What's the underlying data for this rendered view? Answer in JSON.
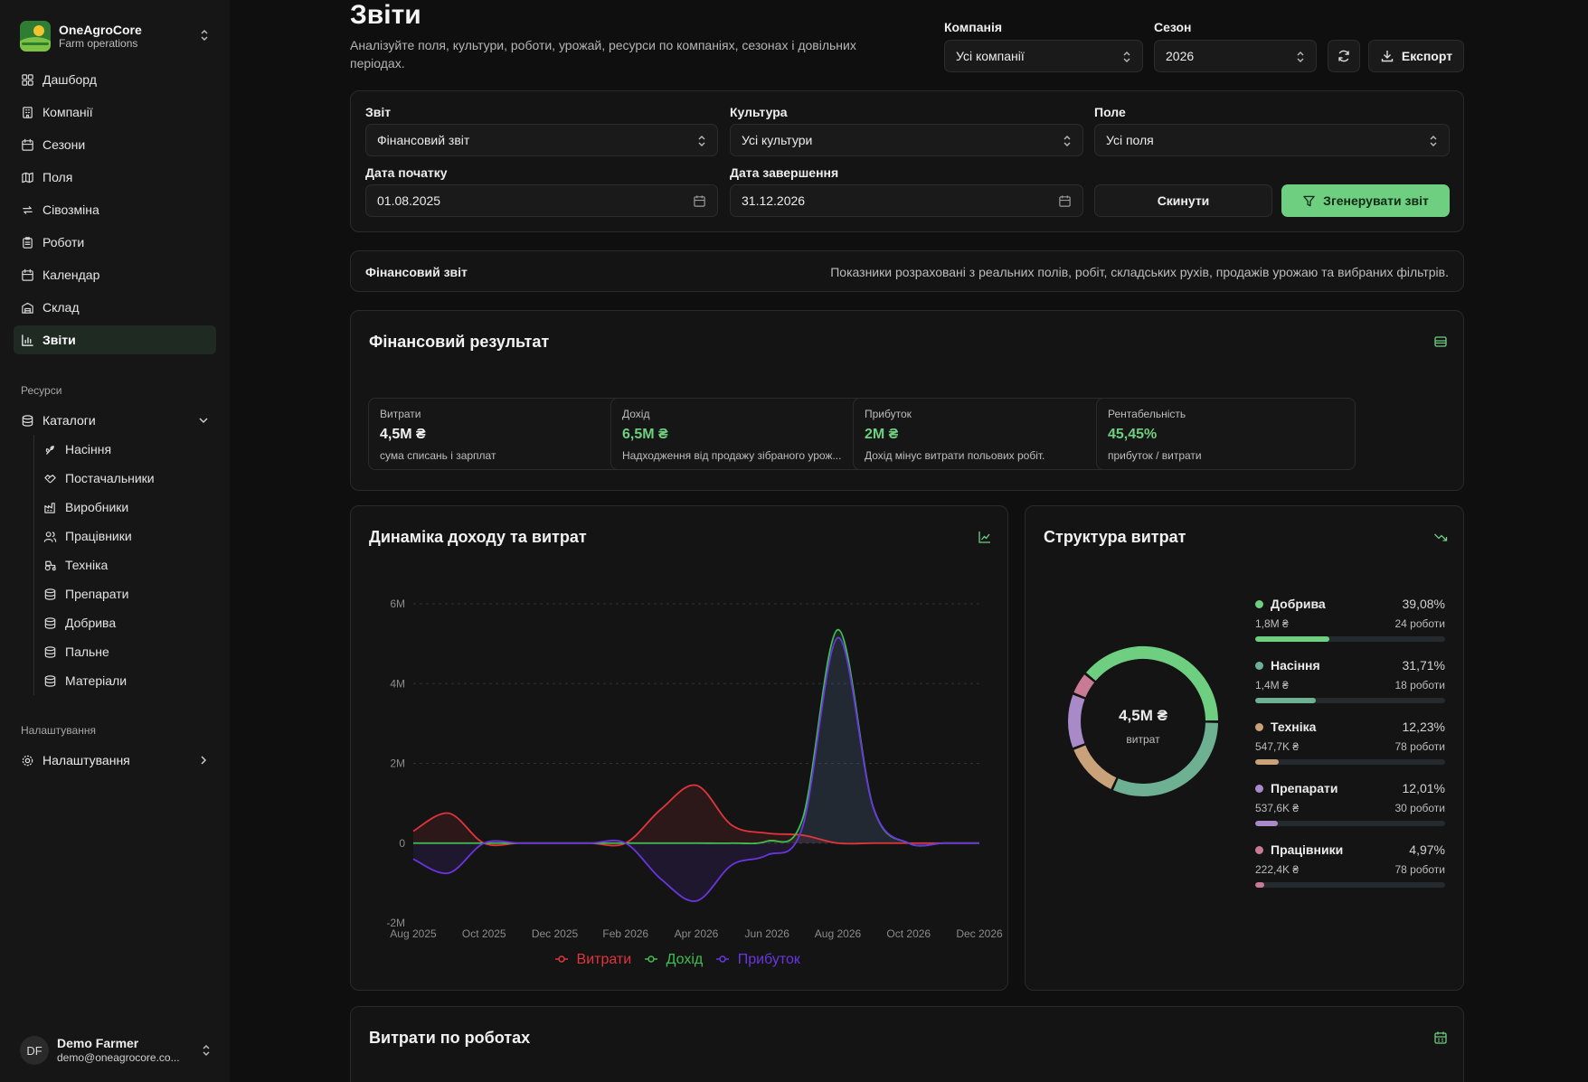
{
  "brand": {
    "name": "OneAgroCore",
    "subtitle": "Farm operations"
  },
  "nav": [
    {
      "label": "Дашборд",
      "icon": "dashboard-icon"
    },
    {
      "label": "Компанії",
      "icon": "building-icon"
    },
    {
      "label": "Сезони",
      "icon": "calendar-icon"
    },
    {
      "label": "Поля",
      "icon": "map-icon"
    },
    {
      "label": "Сівозміна",
      "icon": "repeat-icon"
    },
    {
      "label": "Роботи",
      "icon": "clipboard-icon"
    },
    {
      "label": "Календар",
      "icon": "calendar-icon"
    },
    {
      "label": "Склад",
      "icon": "warehouse-icon"
    },
    {
      "label": "Звіти",
      "icon": "bar-chart-icon",
      "active": true
    }
  ],
  "resources_label": "Ресурси",
  "catalogs": {
    "label": "Каталоги",
    "items": [
      {
        "label": "Насіння",
        "icon": "sprout-icon"
      },
      {
        "label": "Постачальники",
        "icon": "handshake-icon"
      },
      {
        "label": "Виробники",
        "icon": "factory-icon"
      },
      {
        "label": "Працівники",
        "icon": "users-icon"
      },
      {
        "label": "Техніка",
        "icon": "tractor-icon"
      },
      {
        "label": "Препарати",
        "icon": "database-icon"
      },
      {
        "label": "Добрива",
        "icon": "database-icon"
      },
      {
        "label": "Пальне",
        "icon": "database-icon"
      },
      {
        "label": "Матеріали",
        "icon": "database-icon"
      }
    ]
  },
  "settings_section_label": "Налаштування",
  "settings_item": "Налаштування",
  "user": {
    "initials": "DF",
    "name": "Demo Farmer",
    "email": "demo@oneagrocore.co..."
  },
  "header": {
    "title": "Звіти",
    "subtitle": "Аналізуйте поля, культури, роботи, урожай, ресурси по компаніях, сезонах і довільних періодах.",
    "company_label": "Компанія",
    "company_value": "Усі компанії",
    "season_label": "Сезон",
    "season_value": "2026",
    "export_label": "Експорт"
  },
  "filters": {
    "report_label": "Звіт",
    "report_value": "Фінансовий звіт",
    "culture_label": "Культура",
    "culture_value": "Усі культури",
    "field_label": "Поле",
    "field_value": "Усі поля",
    "start_label": "Дата початку",
    "start_value": "01.08.2025",
    "end_label": "Дата завершення",
    "end_value": "31.12.2026",
    "reset_label": "Скинути",
    "generate_label": "Згенерувати звіт"
  },
  "info_bar": {
    "title": "Фінансовий звіт",
    "text": "Показники розраховані з реальних полів, робіт, складських рухів, продажів урожаю та вибраних фільтрів."
  },
  "financial_result": {
    "title": "Фінансовий результат",
    "kpis": [
      {
        "label": "Витрати",
        "value": "4,5M ₴",
        "note": "сума списань і зарплат",
        "color": "#f2f2f2"
      },
      {
        "label": "Дохід",
        "value": "6,5M ₴",
        "note": "Надходження від продажу зібраного урож...",
        "color": "#6fcf80"
      },
      {
        "label": "Прибуток",
        "value": "2M ₴",
        "note": "Дохід мінус витрати польових робіт.",
        "color": "#6fcf80"
      },
      {
        "label": "Рентабельність",
        "value": "45,45%",
        "note": "прибуток / витрати",
        "color": "#6fcf80"
      }
    ]
  },
  "dynamics": {
    "title": "Динаміка доходу та витрат"
  },
  "chart_data": {
    "type": "line",
    "x": [
      "Aug 2025",
      "Sep 2025",
      "Oct 2025",
      "Nov 2025",
      "Dec 2025",
      "Jan 2026",
      "Feb 2026",
      "Mar 2026",
      "Apr 2026",
      "May 2026",
      "Jun 2026",
      "Jul 2026",
      "Aug 2026",
      "Sep 2026",
      "Oct 2026",
      "Nov 2026",
      "Dec 2026"
    ],
    "x_tick_labels": [
      "Aug 2025",
      "Oct 2025",
      "Dec 2025",
      "Feb 2026",
      "Apr 2026",
      "Jun 2026",
      "Aug 2026",
      "Oct 2026",
      "Dec 2026"
    ],
    "y_tick_labels": [
      "-2M",
      "0",
      "2M",
      "4M",
      "6M"
    ],
    "ylim": [
      -2000000,
      6000000
    ],
    "grid": true,
    "legend_position": "bottom",
    "series": [
      {
        "name": "Витрати",
        "color": "#e0353b",
        "values": [
          300000,
          750000,
          0,
          0,
          0,
          0,
          0,
          850000,
          1450000,
          450000,
          250000,
          200000,
          0,
          0,
          0,
          0,
          0
        ]
      },
      {
        "name": "Дохід",
        "color": "#3fbf4f",
        "values": [
          0,
          0,
          0,
          0,
          0,
          0,
          0,
          0,
          0,
          0,
          50000,
          600000,
          5350000,
          900000,
          0,
          0,
          0
        ]
      },
      {
        "name": "Прибуток",
        "color": "#6a35e0",
        "values": [
          -400000,
          -750000,
          0,
          0,
          0,
          0,
          0,
          -900000,
          -1450000,
          -550000,
          -300000,
          400000,
          5150000,
          900000,
          0,
          0,
          0
        ]
      }
    ]
  },
  "structure": {
    "title": "Структура витрат",
    "center_value": "4,5M ₴",
    "center_label": "витрат",
    "items": [
      {
        "name": "Добрива",
        "pct_text": "39,08%",
        "pct": 0.3908,
        "amount": "1,8M ₴",
        "count": "24 роботи",
        "color": "#6fcf80"
      },
      {
        "name": "Насіння",
        "pct_text": "31,71%",
        "pct": 0.3171,
        "amount": "1,4M ₴",
        "count": "18 роботи",
        "color": "#6db092"
      },
      {
        "name": "Техніка",
        "pct_text": "12,23%",
        "pct": 0.1223,
        "amount": "547,7K ₴",
        "count": "78 роботи",
        "color": "#c9a27a"
      },
      {
        "name": "Препарати",
        "pct_text": "12,01%",
        "pct": 0.1201,
        "amount": "537,6K ₴",
        "count": "30 роботи",
        "color": "#a88ac8"
      },
      {
        "name": "Працівники",
        "pct_text": "4,97%",
        "pct": 0.0497,
        "amount": "222,4K ₴",
        "count": "78 роботи",
        "color": "#c97a94"
      }
    ]
  },
  "works_costs": {
    "title": "Витрати по роботах"
  }
}
